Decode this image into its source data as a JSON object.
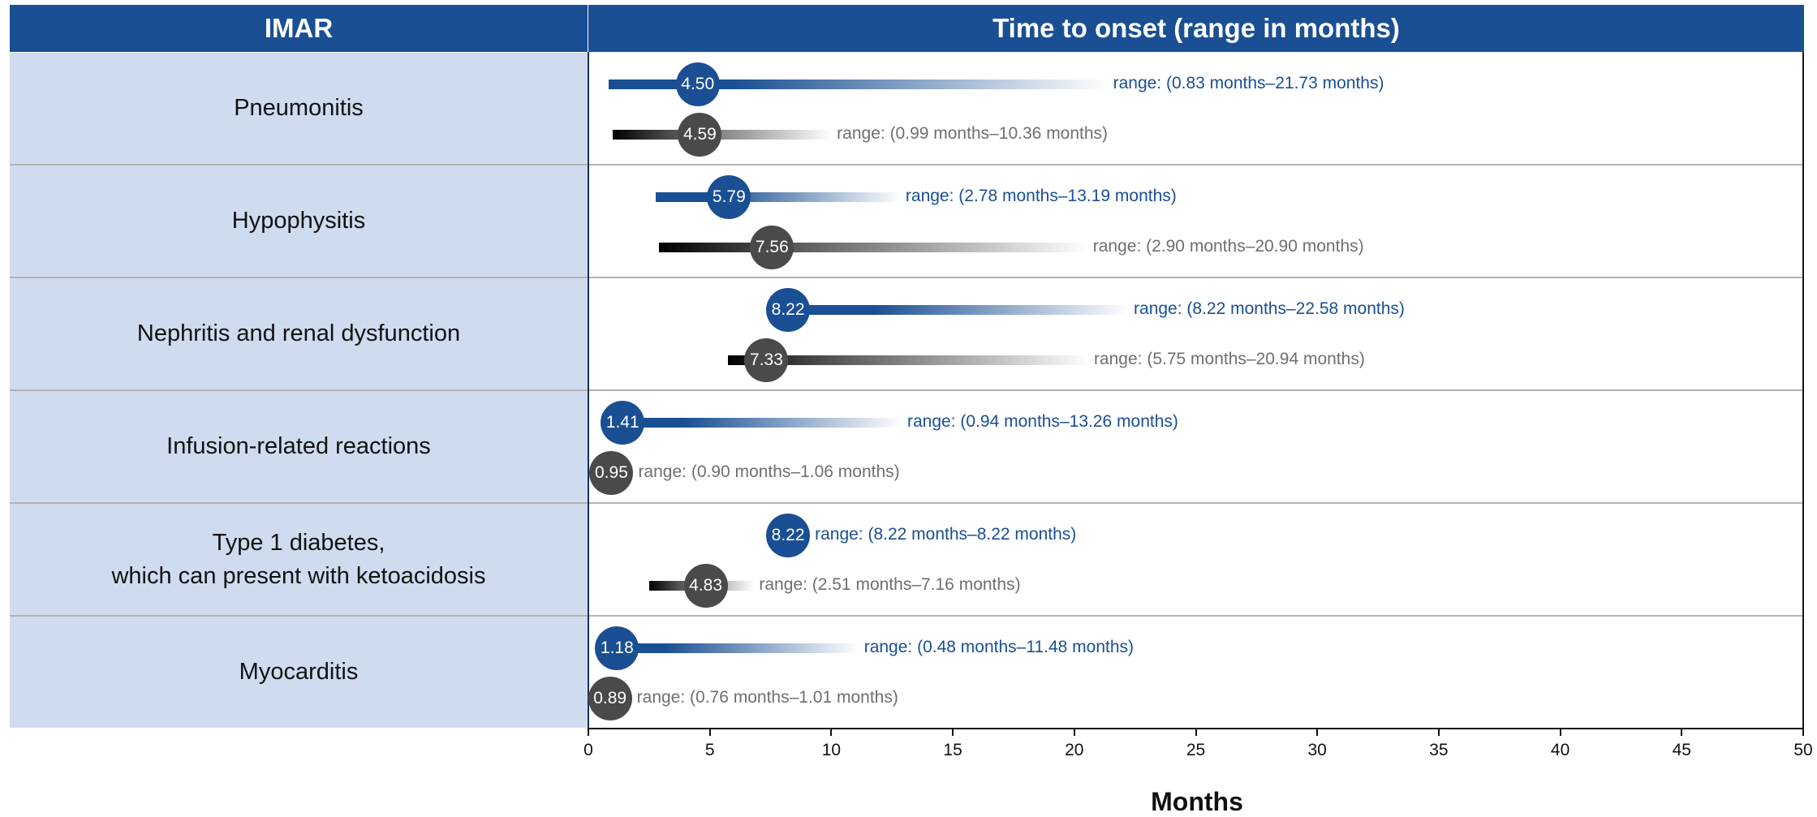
{
  "header": {
    "left": "IMAR",
    "right": "Time to onset (range in months)"
  },
  "chart_data": {
    "type": "range-dot",
    "xlabel": "Months",
    "xlim": [
      0,
      50
    ],
    "xticks": [
      0,
      5,
      10,
      15,
      20,
      25,
      30,
      35,
      40,
      45,
      50
    ],
    "series": [
      {
        "color": "#1a4f93",
        "range_prefix": "range: "
      },
      {
        "color": "#4a4a4a",
        "range_prefix": "range: "
      }
    ],
    "rows": [
      {
        "label": "Pneumonitis",
        "entries": [
          {
            "median": 4.5,
            "range_text": "(0.83 months–21.73 months)"
          },
          {
            "median": 4.59,
            "range_text": "(0.99 months–10.36 months)"
          }
        ]
      },
      {
        "label": "Hypophysitis",
        "entries": [
          {
            "median": 5.79,
            "range_text": "(2.78 months–13.19 months)"
          },
          {
            "median": 7.56,
            "range_text": "(2.90 months–20.90 months)"
          }
        ]
      },
      {
        "label": "Nephritis and renal dysfunction",
        "entries": [
          {
            "median": 8.22,
            "range_text": "(8.22 months–22.58 months)"
          },
          {
            "median": 7.33,
            "range_text": "(5.75 months–20.94 months)"
          }
        ]
      },
      {
        "label": "Infusion-related reactions",
        "entries": [
          {
            "median": 1.41,
            "range_text": "(0.94 months–13.26 months)"
          },
          {
            "median": 0.95,
            "range_text": "(0.90 months–1.06 months)"
          }
        ]
      },
      {
        "label": "Type 1 diabetes,\nwhich can present with ketoacidosis",
        "entries": [
          {
            "median": 8.22,
            "range_text": "(8.22 months–8.22 months)"
          },
          {
            "median": 4.83,
            "range_text": "(2.51 months–7.16 months)"
          }
        ]
      },
      {
        "label": "Myocarditis",
        "entries": [
          {
            "median": 1.18,
            "range_text": "(0.48 months–11.48 months)"
          },
          {
            "median": 0.89,
            "range_text": "(0.76 months–1.01 months)"
          }
        ]
      }
    ]
  }
}
